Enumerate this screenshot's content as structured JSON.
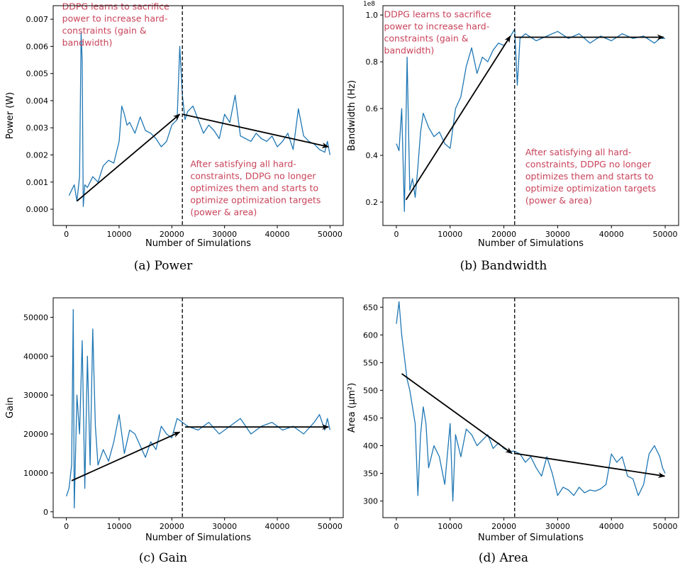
{
  "colors": {
    "series": "#1f77b4",
    "annotation": "#c8435a",
    "axes": "#000000"
  },
  "chart_data": [
    {
      "type": "line",
      "caption": "(a) Power",
      "xlabel": "Number of Simulations",
      "ylabel": "Power (W)",
      "xlim": [
        -2500,
        52500
      ],
      "ylim": [
        -0.0006,
        0.0075
      ],
      "xticks": [
        0,
        10000,
        20000,
        30000,
        40000,
        50000
      ],
      "yticks": [
        0.0,
        0.001,
        0.002,
        0.003,
        0.004,
        0.005,
        0.006,
        0.007
      ],
      "ytick_labels": [
        "0.000",
        "0.001",
        "0.002",
        "0.003",
        "0.004",
        "0.005",
        "0.006",
        "0.007"
      ],
      "vline_x": 22000,
      "series": [
        {
          "x": [
            500,
            1000,
            1500,
            2000,
            2500,
            2800,
            3000,
            3200,
            3500,
            4000,
            5000,
            6000,
            7000,
            8000,
            9000,
            10000,
            10500,
            11000,
            11500,
            12000,
            13000,
            14000,
            15000,
            16000,
            17000,
            18000,
            19000,
            20000,
            21000,
            21500,
            22000,
            22500,
            23000,
            24000,
            25000,
            26000,
            27000,
            28000,
            29000,
            30000,
            31000,
            32000,
            33000,
            34000,
            35000,
            36000,
            37000,
            38000,
            39000,
            40000,
            41000,
            42000,
            43000,
            44000,
            45000,
            46000,
            47000,
            48000,
            49000,
            49500,
            50000
          ],
          "y": [
            0.0005,
            0.0007,
            0.0009,
            0.0003,
            0.0012,
            0.0065,
            0.0055,
            0.0001,
            0.0009,
            0.0008,
            0.0012,
            0.001,
            0.0016,
            0.0018,
            0.0017,
            0.0025,
            0.0038,
            0.0035,
            0.0031,
            0.0032,
            0.0028,
            0.0034,
            0.0029,
            0.0028,
            0.0026,
            0.0023,
            0.0025,
            0.0031,
            0.0033,
            0.006,
            0.0042,
            0.0033,
            0.0036,
            0.0038,
            0.0033,
            0.0028,
            0.0031,
            0.0029,
            0.0026,
            0.0035,
            0.0032,
            0.0042,
            0.0027,
            0.0026,
            0.0025,
            0.0028,
            0.0026,
            0.0025,
            0.0027,
            0.0023,
            0.0025,
            0.0028,
            0.0022,
            0.0037,
            0.0027,
            0.0025,
            0.0024,
            0.0022,
            0.0021,
            0.0025,
            0.002
          ]
        }
      ],
      "arrows": [
        {
          "from": [
            2000,
            0.0003
          ],
          "to": [
            21500,
            0.0035
          ]
        },
        {
          "from": [
            22000,
            0.0035
          ],
          "to": [
            49700,
            0.0023
          ]
        }
      ],
      "annotations": [
        {
          "lines": [
            "DDPG learns to sacrifice",
            "power to increase hard-",
            "constraints (gain &",
            "bandwidth)"
          ],
          "x": -800,
          "y": 0.00735
        },
        {
          "lines": [
            "After satisfying all hard-",
            "constraints, DDPG no longer",
            "optimizes them and starts to",
            "optimize optimization targets",
            "(power & area)"
          ],
          "x": 23500,
          "y": 0.00155
        }
      ]
    },
    {
      "type": "line",
      "caption": "(b) Bandwidth",
      "xlabel": "Number of Simulations",
      "ylabel": "Bandwidth (Hz)",
      "offset_text": "1e8",
      "xlim": [
        -2500,
        52500
      ],
      "ylim": [
        0.1,
        1.04
      ],
      "xticks": [
        0,
        10000,
        20000,
        30000,
        40000,
        50000
      ],
      "yticks": [
        0.2,
        0.4,
        0.6,
        0.8,
        1.0
      ],
      "ytick_labels": [
        "0.2",
        "0.4",
        "0.6",
        "0.8",
        "1.0"
      ],
      "vline_x": 22000,
      "series": [
        {
          "x": [
            0,
            500,
            1000,
            1500,
            2000,
            2500,
            3000,
            3500,
            4000,
            4500,
            5000,
            6000,
            7000,
            8000,
            9000,
            10000,
            11000,
            12000,
            13000,
            14000,
            15000,
            16000,
            17000,
            18000,
            19000,
            20000,
            21000,
            22000,
            22500,
            23000,
            24000,
            26000,
            28000,
            30000,
            32000,
            34000,
            36000,
            38000,
            40000,
            42000,
            44000,
            46000,
            48000,
            49000,
            50000
          ],
          "y": [
            0.45,
            0.42,
            0.6,
            0.16,
            0.82,
            0.25,
            0.3,
            0.22,
            0.35,
            0.5,
            0.58,
            0.52,
            0.48,
            0.5,
            0.45,
            0.43,
            0.6,
            0.65,
            0.78,
            0.86,
            0.75,
            0.82,
            0.8,
            0.85,
            0.88,
            0.87,
            0.9,
            0.94,
            0.7,
            0.9,
            0.92,
            0.89,
            0.91,
            0.93,
            0.9,
            0.92,
            0.88,
            0.91,
            0.89,
            0.92,
            0.9,
            0.91,
            0.88,
            0.9,
            0.9
          ]
        }
      ],
      "arrows": [
        {
          "from": [
            1800,
            0.21
          ],
          "to": [
            21200,
            0.91
          ]
        },
        {
          "from": [
            22000,
            0.905
          ],
          "to": [
            49700,
            0.905
          ]
        }
      ],
      "annotations": [
        {
          "lines": [
            "DDPG learns to sacrifice",
            "power to increase hard-",
            "constraints (gain &",
            "bandwidth)"
          ],
          "x": -2300,
          "y": 0.99
        },
        {
          "lines": [
            "After satisfying all hard-",
            "constraints, DDPG no longer",
            "optimizes them and starts to",
            "optimize optimization targets",
            "(power & area)"
          ],
          "x": 24000,
          "y": 0.4
        }
      ]
    },
    {
      "type": "line",
      "caption": "(c) Gain",
      "xlabel": "Number of Simulations",
      "ylabel": "Gain",
      "xlim": [
        -2500,
        52500
      ],
      "ylim": [
        -1500,
        55000
      ],
      "xticks": [
        0,
        10000,
        20000,
        30000,
        40000,
        50000
      ],
      "yticks": [
        0,
        10000,
        20000,
        30000,
        40000,
        50000
      ],
      "ytick_labels": [
        "0",
        "10000",
        "20000",
        "30000",
        "40000",
        "50000"
      ],
      "vline_x": 22000,
      "series": [
        {
          "x": [
            0,
            500,
            1000,
            1300,
            1500,
            2000,
            2500,
            3000,
            3500,
            4000,
            4500,
            5000,
            5500,
            6000,
            7000,
            8000,
            9000,
            10000,
            11000,
            12000,
            13000,
            14000,
            15000,
            16000,
            17000,
            18000,
            19000,
            20000,
            21000,
            22000,
            23000,
            25000,
            27000,
            29000,
            31000,
            33000,
            35000,
            37000,
            39000,
            41000,
            43000,
            45000,
            47000,
            48000,
            49000,
            49500,
            50000
          ],
          "y": [
            4000,
            6000,
            12000,
            52000,
            1000,
            30000,
            20000,
            44000,
            6000,
            40000,
            12000,
            47000,
            22000,
            12000,
            16000,
            13000,
            18000,
            25000,
            15000,
            21000,
            20000,
            17000,
            14000,
            18000,
            16000,
            22000,
            20000,
            19000,
            24000,
            23000,
            22000,
            21000,
            23000,
            20000,
            22000,
            24000,
            20000,
            22000,
            23000,
            21000,
            22000,
            20000,
            23000,
            25000,
            21000,
            24000,
            21000
          ]
        }
      ],
      "arrows": [
        {
          "from": [
            1000,
            8000
          ],
          "to": [
            21500,
            20500
          ]
        },
        {
          "from": [
            22500,
            21800
          ],
          "to": [
            49700,
            21800
          ]
        }
      ],
      "annotations": []
    },
    {
      "type": "line",
      "caption": "(d) Area",
      "xlabel": "Number of Simulations",
      "ylabel": "Area (μm²)",
      "xlim": [
        -2500,
        52500
      ],
      "ylim": [
        270,
        667
      ],
      "xticks": [
        0,
        10000,
        20000,
        30000,
        40000,
        50000
      ],
      "yticks": [
        300,
        350,
        400,
        450,
        500,
        550,
        600,
        650
      ],
      "ytick_labels": [
        "300",
        "350",
        "400",
        "450",
        "500",
        "550",
        "600",
        "650"
      ],
      "vline_x": 22000,
      "series": [
        {
          "x": [
            0,
            500,
            1000,
            1500,
            2000,
            2500,
            3000,
            3500,
            4000,
            4500,
            5000,
            5500,
            6000,
            7000,
            8000,
            9000,
            10000,
            10500,
            11000,
            12000,
            13000,
            14000,
            15000,
            16000,
            17000,
            18000,
            19000,
            20000,
            21000,
            22000,
            23000,
            24000,
            25000,
            26000,
            27000,
            28000,
            29000,
            30000,
            31000,
            32000,
            33000,
            34000,
            35000,
            36000,
            37000,
            38000,
            39000,
            40000,
            41000,
            42000,
            43000,
            44000,
            45000,
            46000,
            47000,
            48000,
            49000,
            49500,
            50000
          ],
          "y": [
            620,
            660,
            600,
            560,
            520,
            500,
            470,
            440,
            310,
            420,
            470,
            440,
            360,
            400,
            380,
            330,
            440,
            300,
            420,
            380,
            430,
            420,
            400,
            410,
            420,
            395,
            405,
            395,
            390,
            390,
            385,
            370,
            380,
            360,
            345,
            380,
            350,
            310,
            325,
            320,
            310,
            325,
            315,
            320,
            318,
            322,
            330,
            385,
            370,
            380,
            345,
            340,
            310,
            330,
            385,
            400,
            380,
            360,
            350
          ]
        }
      ],
      "arrows": [
        {
          "from": [
            1000,
            530
          ],
          "to": [
            21500,
            386
          ]
        },
        {
          "from": [
            22000,
            386
          ],
          "to": [
            49900,
            345
          ]
        }
      ],
      "annotations": []
    }
  ]
}
